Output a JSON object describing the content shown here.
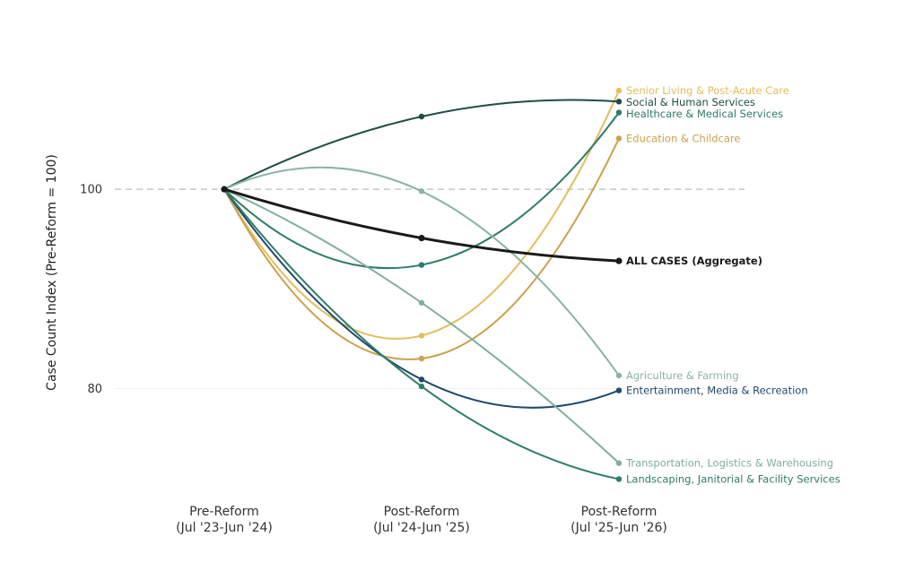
{
  "chart_data": {
    "type": "line",
    "title": "",
    "xlabel": "",
    "ylabel": "Case Count Index (Pre-Reform = 100)",
    "x_categories": [
      {
        "line1": "Pre-Reform",
        "line2": "(Jul '23-Jun '24)"
      },
      {
        "line1": "Post-Reform",
        "line2": "(Jul '24-Jun '25)"
      },
      {
        "line1": "Post-Reform",
        "line2": "(Jul '25-Jun '26)"
      }
    ],
    "y_ticks": [
      {
        "value": 80,
        "label": "80"
      },
      {
        "value": 100,
        "label": "100"
      }
    ],
    "ylim": [
      69.5,
      114.5
    ],
    "reference_line": 100,
    "grid": false,
    "legend": "direct-labels-right",
    "series": [
      {
        "name": "Senior Living & Post-Acute Care",
        "values": [
          100,
          85.3,
          109.9
        ],
        "color": "#E2BE5C"
      },
      {
        "name": "Social & Human Services",
        "values": [
          100,
          107.3,
          108.8
        ],
        "color": "#1E4D45"
      },
      {
        "name": "Healthcare & Medical Services",
        "values": [
          100,
          92.4,
          107.7
        ],
        "color": "#2F7A6A"
      },
      {
        "name": "Education & Childcare",
        "values": [
          100,
          83.0,
          105.1
        ],
        "color": "#C9A24E"
      },
      {
        "name": "ALL CASES (Aggregate)",
        "values": [
          100,
          95.1,
          92.8
        ],
        "color": "#1A1A1A",
        "bold": true
      },
      {
        "name": "Agriculture & Farming",
        "values": [
          100,
          99.8,
          81.3
        ],
        "color": "#8AB4A6"
      },
      {
        "name": "Entertainment, Media & Recreation",
        "values": [
          100,
          80.9,
          79.8
        ],
        "color": "#1F4A6B"
      },
      {
        "name": "Transportation, Logistics & Warehousing",
        "values": [
          100,
          88.6,
          72.5
        ],
        "color": "#7FAE9F"
      },
      {
        "name": "Landscaping, Janitorial & Facility Services",
        "values": [
          100,
          80.2,
          70.9
        ],
        "color": "#2E7D6B"
      }
    ]
  }
}
